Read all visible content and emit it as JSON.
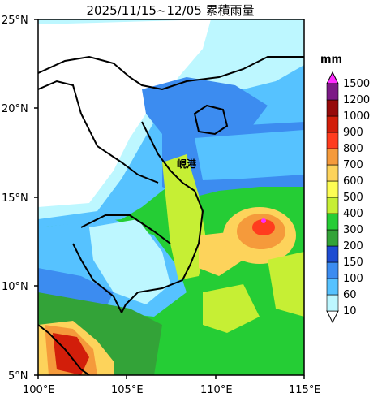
{
  "title": "2025/11/15~12/05 累積雨量",
  "unit": "mm",
  "city_label": "峴港",
  "lat_ticks": [
    "25°N",
    "20°N",
    "15°N",
    "10°N",
    "5°N"
  ],
  "lon_ticks": [
    "100°E",
    "105°E",
    "110°E",
    "115°E"
  ],
  "colorbar": {
    "levels": [
      "10",
      "60",
      "100",
      "150",
      "200",
      "300",
      "400",
      "500",
      "600",
      "700",
      "800",
      "900",
      "1000",
      "1200",
      "1500"
    ],
    "colors": [
      "#bdf7ff",
      "#56c2ff",
      "#3c8cf0",
      "#1e4cd2",
      "#33a338",
      "#25cd35",
      "#c6ef34",
      "#fdfd54",
      "#fdd35b",
      "#f59a3b",
      "#ff3c1e",
      "#d21e0a",
      "#960a0a",
      "#7c1a86",
      "#c81ec8",
      "#ff2cff"
    ],
    "under_color": "#ffffff"
  },
  "colors": {
    "land_bg": "#ffffff",
    "coast": "#000000"
  }
}
